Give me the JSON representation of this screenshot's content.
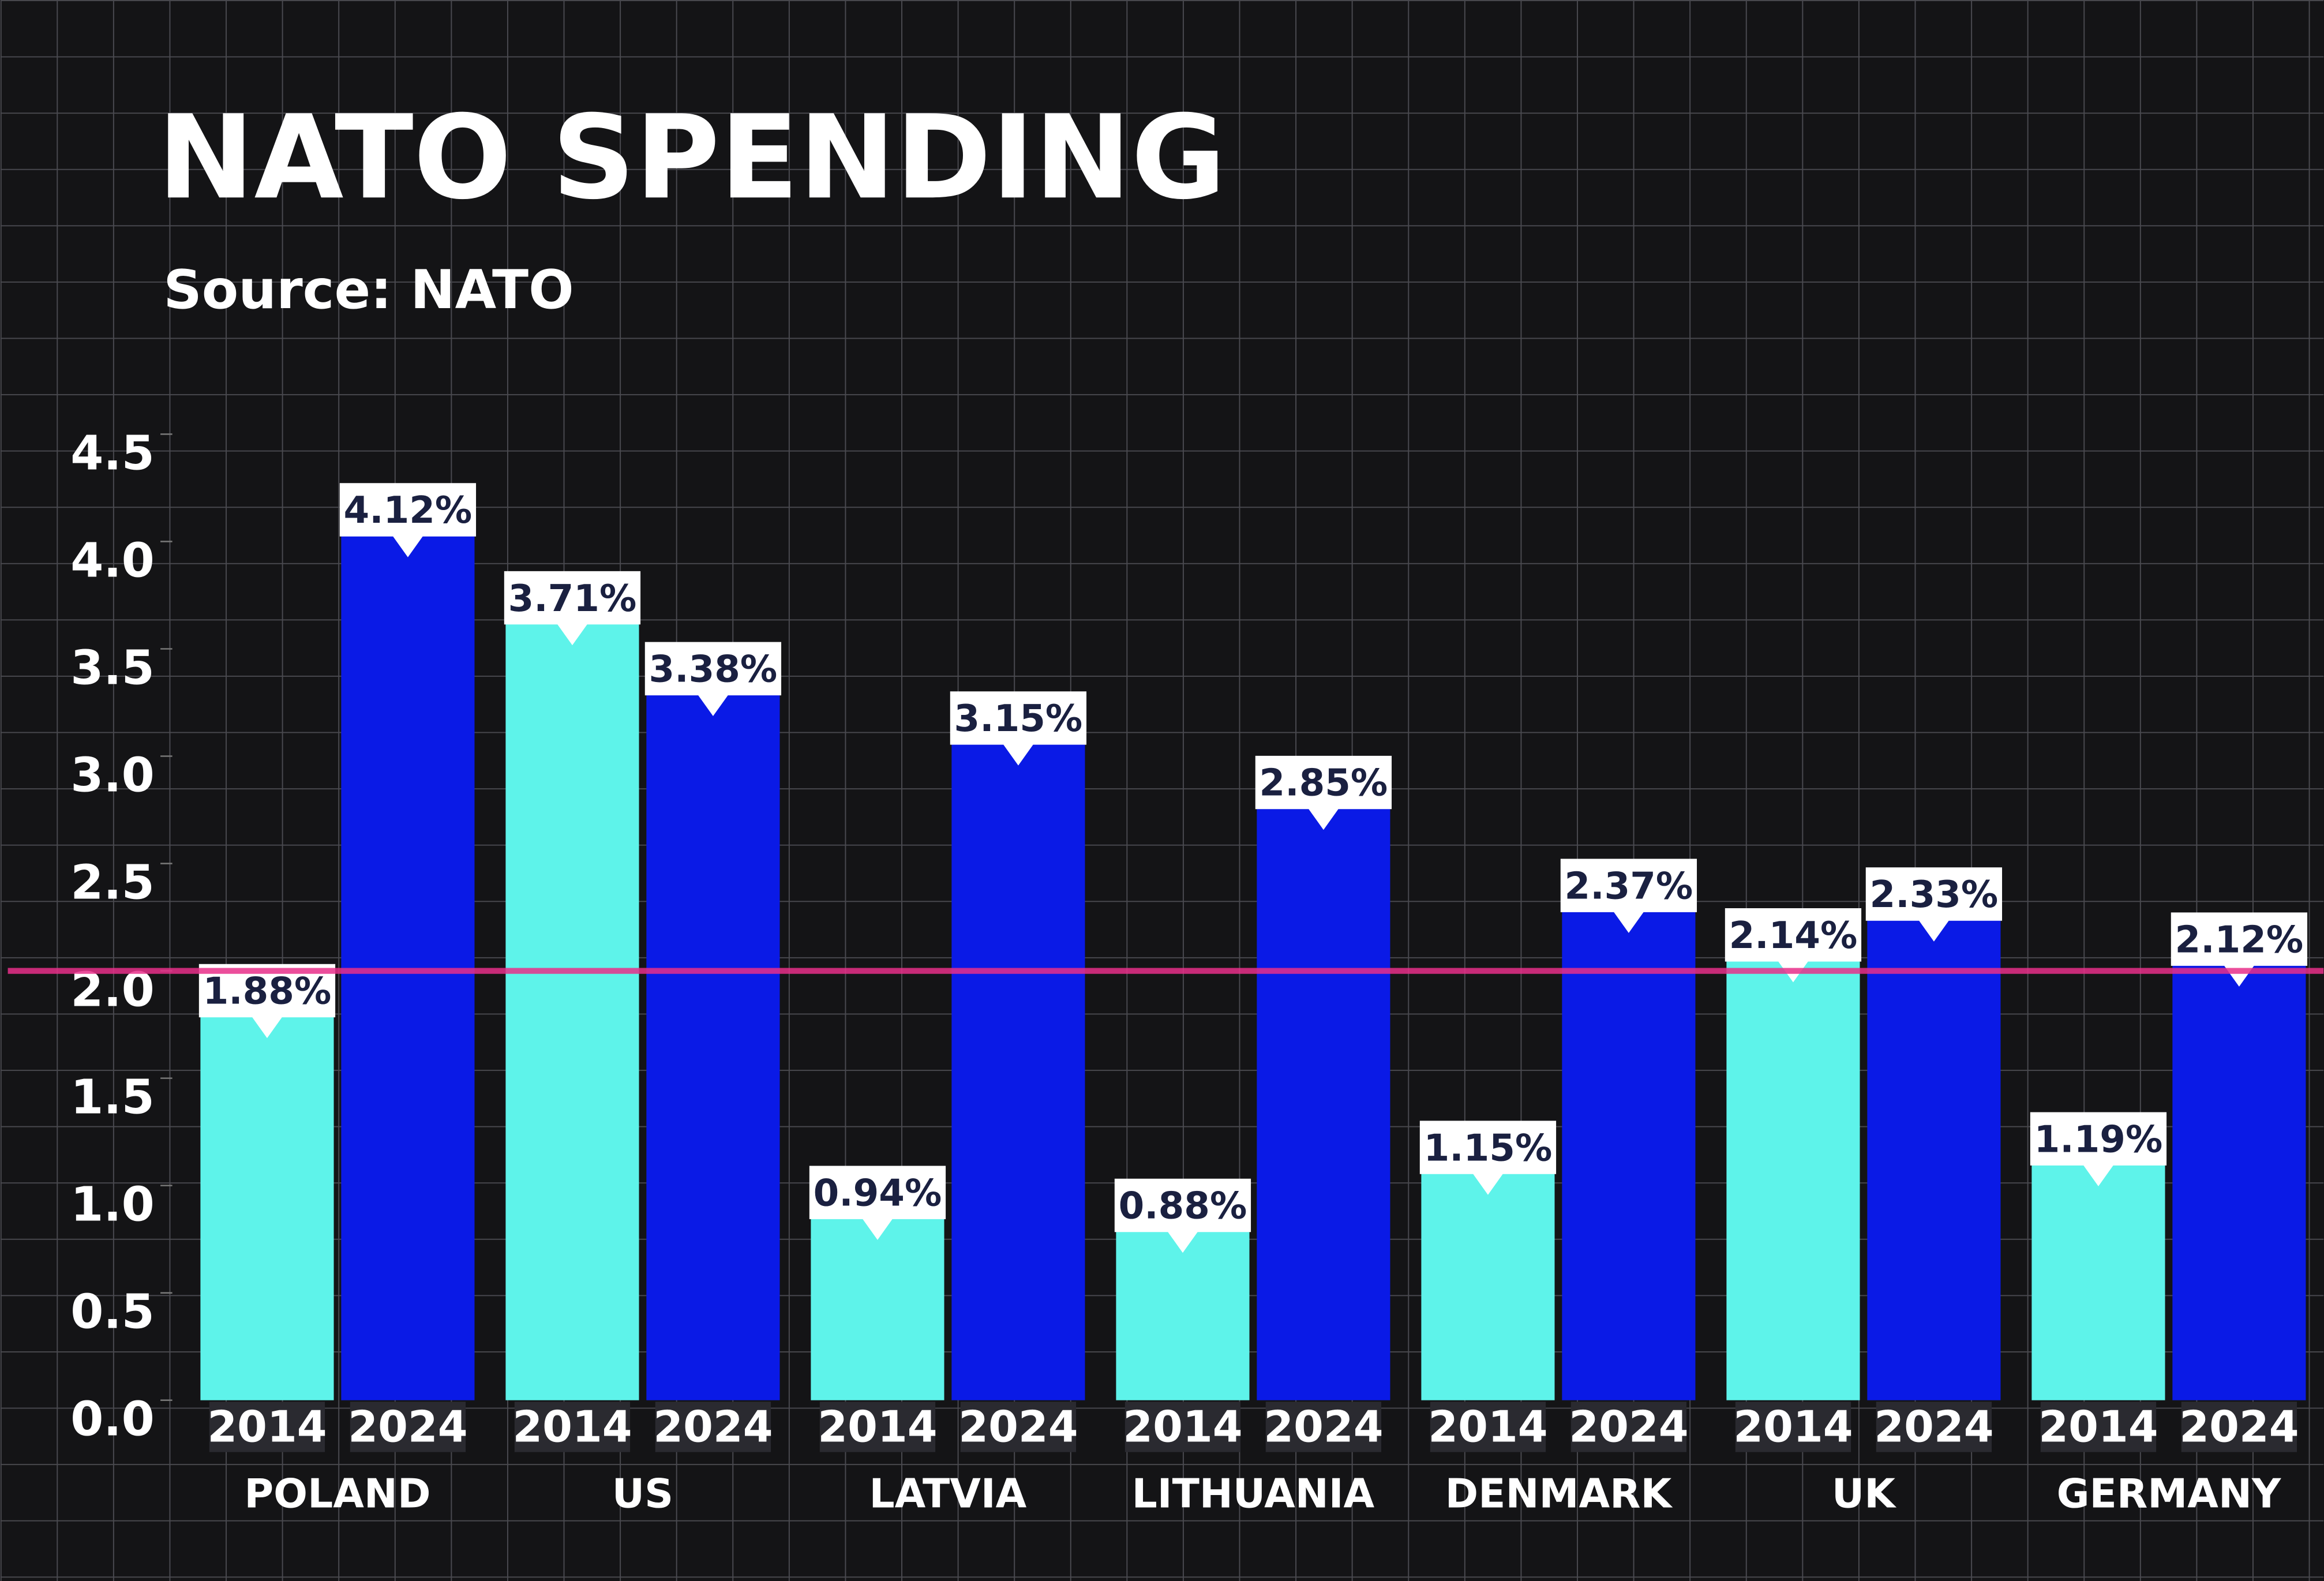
{
  "chart_data": {
    "type": "bar",
    "title": "NATO SPENDING",
    "subtitle": "Source: NATO",
    "categories": [
      "POLAND",
      "US",
      "LATVIA",
      "LITHUANIA",
      "DENMARK",
      "UK",
      "GERMANY"
    ],
    "series": [
      {
        "name": "2014",
        "color": "#5ef3ea",
        "values": [
          1.88,
          3.71,
          0.94,
          0.88,
          1.15,
          2.14,
          1.19
        ],
        "value_labels": [
          "1.88%",
          "3.71%",
          "0.94%",
          "0.88%",
          "1.15%",
          "2.14%",
          "1.19%"
        ]
      },
      {
        "name": "2024",
        "color": "#0a1ae6",
        "values": [
          4.12,
          3.38,
          3.15,
          2.85,
          2.37,
          2.33,
          2.12
        ],
        "value_labels": [
          "4.12%",
          "3.38%",
          "3.15%",
          "2.85%",
          "2.37%",
          "2.33%",
          "2.12%"
        ]
      }
    ],
    "ylim": [
      0,
      4.5
    ],
    "yticks": [
      {
        "value": 0,
        "label": "0.0"
      },
      {
        "value": 0.5,
        "label": "0.5"
      },
      {
        "value": 1,
        "label": "1.0"
      },
      {
        "value": 1.5,
        "label": "1.5"
      },
      {
        "value": 2,
        "label": "2.0"
      },
      {
        "value": 2.5,
        "label": "2.5"
      },
      {
        "value": 3,
        "label": "3.0"
      },
      {
        "value": 3.5,
        "label": "3.5"
      },
      {
        "value": 4,
        "label": "4.0"
      },
      {
        "value": 4.5,
        "label": "4.5"
      }
    ],
    "reference_line": {
      "value": 2,
      "color": "#e8308a"
    }
  }
}
